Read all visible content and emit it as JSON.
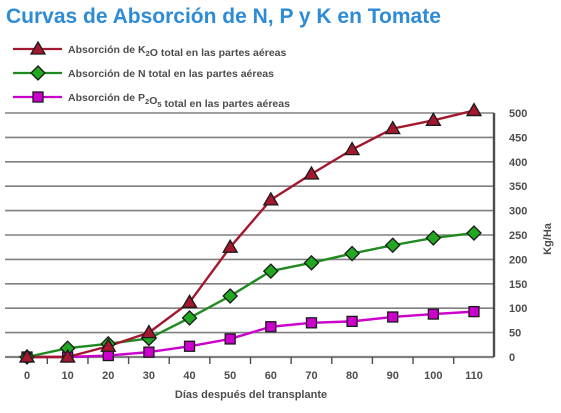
{
  "chart_data": {
    "type": "line",
    "title": "Curvas de Absorción de N, P y K en Tomate",
    "xlabel": "Días después del transplante",
    "ylabel": "Kg/Ha",
    "x": [
      0,
      10,
      20,
      30,
      40,
      50,
      60,
      70,
      80,
      90,
      100,
      110
    ],
    "xlim": [
      0,
      110
    ],
    "ylim": [
      0,
      500
    ],
    "y_ticks": [
      0,
      50,
      100,
      150,
      200,
      250,
      300,
      350,
      400,
      450,
      500
    ],
    "y_axis_side": "right",
    "grid": true,
    "legend_position": "top-left",
    "series": [
      {
        "label_prefix": "Absorción de K",
        "label_sub": "2",
        "label_suffix": "O total en las partes aéreas",
        "color": "#a3182e",
        "marker": "triangle",
        "marker_color": "#a3182e",
        "values": [
          0,
          0,
          22,
          50,
          112,
          225,
          322,
          375,
          425,
          468,
          485,
          505
        ]
      },
      {
        "label_prefix": "Absorción de N total en las partes aéreas",
        "label_sub": "",
        "label_suffix": "",
        "color": "#1f8a1f",
        "marker": "diamond",
        "marker_color": "#21a821",
        "values": [
          0,
          18,
          27,
          38,
          80,
          125,
          176,
          193,
          212,
          229,
          244,
          254
        ]
      },
      {
        "label_prefix": "Absorción de P",
        "label_sub": "2",
        "label_suffix": "O",
        "label_sub2": "5",
        "label_suffix2": " total en las partes aéreas",
        "color": "#cc00cc",
        "marker": "square",
        "marker_color": "#cc00cc",
        "values": [
          0,
          0,
          3,
          10,
          22,
          37,
          62,
          70,
          73,
          82,
          88,
          93
        ]
      }
    ],
    "colors": {
      "title": "#2e8bd6",
      "grid": "#808080",
      "axis": "#4d4d4d"
    }
  }
}
